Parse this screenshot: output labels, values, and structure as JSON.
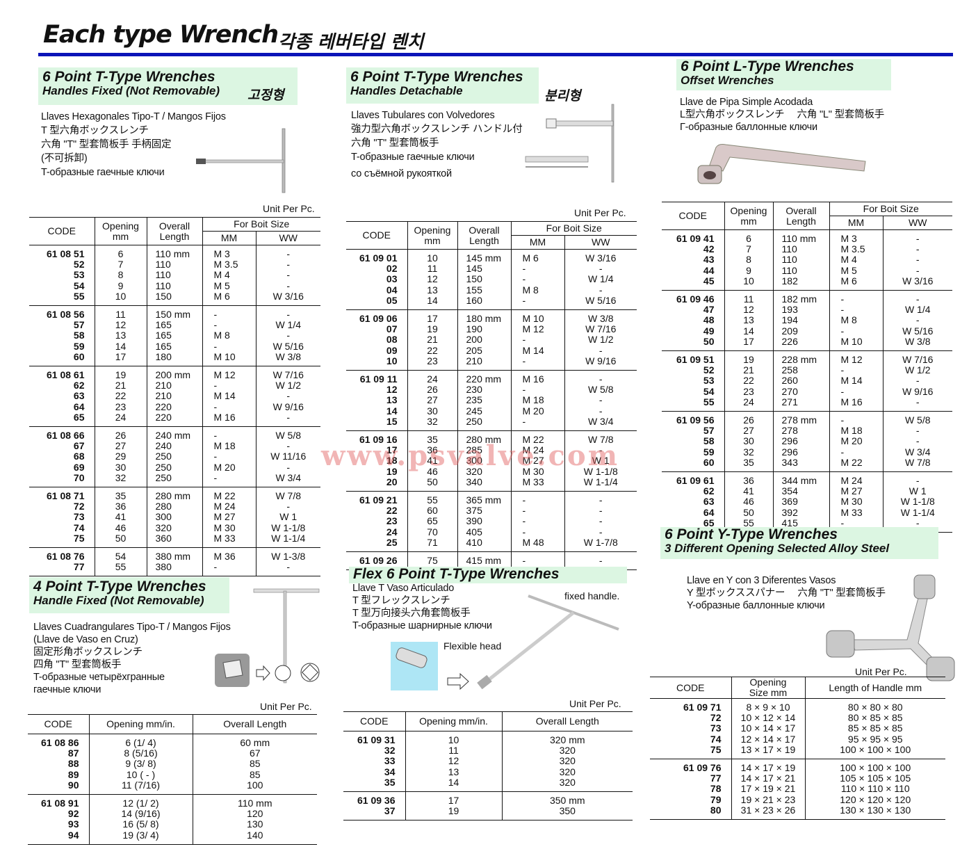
{
  "page": {
    "title": "Each type Wrench",
    "title_ko": "각종 레버타입 렌치",
    "watermark": "www.psvalve.com",
    "accent_color": "#0b14b8",
    "header_bg": "#dcf6e2"
  },
  "sections": {
    "s1": {
      "title": "6 Point T-Type Wrenches",
      "subtitle": "Handles Fixed (Not Removable)",
      "ko": "고정형",
      "desc": [
        "Llaves Hexagonales Tipo-T / Mangos Fijos",
        "T 型六角ボックスレンチ",
        "六角 \"T\" 型套筒板手 手柄固定",
        "(不可拆卸)",
        "T-образные гаечные ключи"
      ],
      "unit": "Unit Per Pc."
    },
    "s2": {
      "title": "6 Point T-Type Wrenches",
      "subtitle": "Handles Detachable",
      "ko": "분리형",
      "desc": [
        "Llaves Tubulares con Volvedores",
        "強力型六角ボックスレンチ ハンドル付",
        "六角 \"T\" 型套筒板手",
        "T-образные гаечные ключи",
        "со съёмной рукояткой"
      ],
      "unit": "Unit Per Pc."
    },
    "s3": {
      "title": "6 Point L-Type Wrenches",
      "subtitle": "Offset Wrenches",
      "desc": [
        "Llave de Pipa Simple Acodada",
        "L型六角ボックスレンチ　 六角 \"L\" 型套筒板手",
        "Г-образные баллонные ключи"
      ]
    },
    "s4": {
      "title": "4 Point T-Type Wrenches",
      "subtitle": "Handle Fixed (Not Removable)",
      "desc": [
        "Llaves Cuadrangulares Tipo-T / Mangos Fijos",
        "(Llave de Vaso en Cruz)",
        "固定形角ボックスレンチ",
        "四角 \"T\" 型套筒板手",
        "T-образные четырёхгранные",
        "гаечные ключи"
      ],
      "unit": "Unit Per Pc."
    },
    "s5": {
      "title": "Flex 6 Point T-Type Wrenches",
      "desc": [
        "Llave T Vaso Articulado",
        "T 型フレックスレンチ",
        "T 型万向接头六角套筒板手",
        "T-образные шарнирные ключи"
      ],
      "note_handle": "fixed handle.",
      "note_head": "Flexible head",
      "unit": "Unit Per Pc."
    },
    "s6": {
      "title": "6 Point Y-Type Wrenches",
      "subtitle": "3 Different Opening Selected Alloy Steel",
      "desc": [
        "Llave en Y con 3 Diferentes Vasos",
        "Y 型ボックススパナー　 六角 \"T\" 型套筒板手",
        "Y-образные баллонные ключи"
      ],
      "unit": "Unit Per Pc."
    }
  },
  "tables": {
    "t1": {
      "headers": [
        "CODE",
        "Opening mm",
        "Overall Length",
        "For Boit Size",
        "MM",
        "WW"
      ],
      "groups": [
        [
          [
            "61 08 51",
            "6",
            "110 mm",
            "M  3",
            "-"
          ],
          [
            "52",
            "7",
            "110",
            "M  3.5",
            "-"
          ],
          [
            "53",
            "8",
            "110",
            "M  4",
            "-"
          ],
          [
            "54",
            "9",
            "110",
            "M  5",
            "-"
          ],
          [
            "55",
            "10",
            "150",
            "M  6",
            "W 3/16"
          ]
        ],
        [
          [
            "61 08 56",
            "11",
            "150 mm",
            "-",
            "-"
          ],
          [
            "57",
            "12",
            "165",
            "-",
            "W 1/4"
          ],
          [
            "58",
            "13",
            "165",
            "M  8",
            "-"
          ],
          [
            "59",
            "14",
            "165",
            "-",
            "W 5/16"
          ],
          [
            "60",
            "17",
            "180",
            "M 10",
            "W 3/8"
          ]
        ],
        [
          [
            "61 08 61",
            "19",
            "200 mm",
            "M 12",
            "W 7/16"
          ],
          [
            "62",
            "21",
            "210",
            "-",
            "W 1/2"
          ],
          [
            "63",
            "22",
            "210",
            "M 14",
            "-"
          ],
          [
            "64",
            "23",
            "220",
            "-",
            "W 9/16"
          ],
          [
            "65",
            "24",
            "220",
            "M 16",
            "-"
          ]
        ],
        [
          [
            "61 08 66",
            "26",
            "240 mm",
            "-",
            "W 5/8"
          ],
          [
            "67",
            "27",
            "240",
            "M 18",
            "-"
          ],
          [
            "68",
            "29",
            "250",
            "-",
            "W 11/16"
          ],
          [
            "69",
            "30",
            "250",
            "M 20",
            "-"
          ],
          [
            "70",
            "32",
            "250",
            "-",
            "W 3/4"
          ]
        ],
        [
          [
            "61 08 71",
            "35",
            "280 mm",
            "M 22",
            "W 7/8"
          ],
          [
            "72",
            "36",
            "280",
            "M 24",
            "-"
          ],
          [
            "73",
            "41",
            "300",
            "M 27",
            "W 1"
          ],
          [
            "74",
            "46",
            "320",
            "M 30",
            "W 1-1/8"
          ],
          [
            "75",
            "50",
            "360",
            "M 33",
            "W 1-1/4"
          ]
        ],
        [
          [
            "61 08 76",
            "54",
            "380 mm",
            "M 36",
            "W 1-3/8"
          ],
          [
            "77",
            "55",
            "380",
            "-",
            "-"
          ]
        ]
      ]
    },
    "t2": {
      "headers": [
        "CODE",
        "Opening mm",
        "Overall Length",
        "For Boit Size",
        "MM",
        "WW"
      ],
      "groups": [
        [
          [
            "61 09 01",
            "10",
            "145 mm",
            "M  6",
            "W 3/16"
          ],
          [
            "02",
            "11",
            "145",
            "-",
            "-"
          ],
          [
            "03",
            "12",
            "150",
            "-",
            "W 1/4"
          ],
          [
            "04",
            "13",
            "155",
            "M  8",
            "-"
          ],
          [
            "05",
            "14",
            "160",
            "-",
            "W 5/16"
          ]
        ],
        [
          [
            "61 09 06",
            "17",
            "180 mm",
            "M 10",
            "W 3/8"
          ],
          [
            "07",
            "19",
            "190",
            "M 12",
            "W 7/16"
          ],
          [
            "08",
            "21",
            "200",
            "-",
            "W 1/2"
          ],
          [
            "09",
            "22",
            "205",
            "M 14",
            "-"
          ],
          [
            "10",
            "23",
            "210",
            "-",
            "W 9/16"
          ]
        ],
        [
          [
            "61 09 11",
            "24",
            "220 mm",
            "M 16",
            "-"
          ],
          [
            "12",
            "26",
            "230",
            "-",
            "W 5/8"
          ],
          [
            "13",
            "27",
            "235",
            "M 18",
            "-"
          ],
          [
            "14",
            "30",
            "245",
            "M 20",
            "-"
          ],
          [
            "15",
            "32",
            "250",
            "-",
            "W 3/4"
          ]
        ],
        [
          [
            "61 09 16",
            "35",
            "280 mm",
            "M 22",
            "W 7/8"
          ],
          [
            "17",
            "36",
            "285",
            "M 24",
            "-"
          ],
          [
            "18",
            "41",
            "300",
            "M 27",
            "W 1"
          ],
          [
            "19",
            "46",
            "320",
            "M 30",
            "W 1-1/8"
          ],
          [
            "20",
            "50",
            "340",
            "M 33",
            "W 1-1/4"
          ]
        ],
        [
          [
            "61 09 21",
            "55",
            "365 mm",
            "-",
            "-"
          ],
          [
            "22",
            "60",
            "375",
            "-",
            "-"
          ],
          [
            "23",
            "65",
            "390",
            "-",
            "-"
          ],
          [
            "24",
            "70",
            "405",
            "-",
            "-"
          ],
          [
            "25",
            "71",
            "410",
            "M 48",
            "W 1-7/8"
          ]
        ],
        [
          [
            "61 09 26",
            "75",
            "415 mm",
            "-",
            "-"
          ]
        ]
      ]
    },
    "t3": {
      "headers": [
        "CODE",
        "Opening mm",
        "Overall Length",
        "For Boit Size",
        "MM",
        "WW"
      ],
      "groups": [
        [
          [
            "61 09 41",
            "6",
            "110 mm",
            "M  3",
            "-"
          ],
          [
            "42",
            "7",
            "110",
            "M  3.5",
            "-"
          ],
          [
            "43",
            "8",
            "110",
            "M  4",
            "-"
          ],
          [
            "44",
            "9",
            "110",
            "M  5",
            "-"
          ],
          [
            "45",
            "10",
            "182",
            "M  6",
            "W 3/16"
          ]
        ],
        [
          [
            "61 09 46",
            "11",
            "182 mm",
            "-",
            "-"
          ],
          [
            "47",
            "12",
            "193",
            "-",
            "W 1/4"
          ],
          [
            "48",
            "13",
            "194",
            "M  8",
            "-"
          ],
          [
            "49",
            "14",
            "209",
            "-",
            "W 5/16"
          ],
          [
            "50",
            "17",
            "226",
            "M 10",
            "W 3/8"
          ]
        ],
        [
          [
            "61 09 51",
            "19",
            "228 mm",
            "M 12",
            "W 7/16"
          ],
          [
            "52",
            "21",
            "258",
            "-",
            "W 1/2"
          ],
          [
            "53",
            "22",
            "260",
            "M 14",
            "-"
          ],
          [
            "54",
            "23",
            "270",
            "-",
            "W 9/16"
          ],
          [
            "55",
            "24",
            "271",
            "M 16",
            "-"
          ]
        ],
        [
          [
            "61 09 56",
            "26",
            "278 mm",
            "-",
            "W 5/8"
          ],
          [
            "57",
            "27",
            "278",
            "M 18",
            "-"
          ],
          [
            "58",
            "30",
            "296",
            "M 20",
            "-"
          ],
          [
            "59",
            "32",
            "296",
            "-",
            "W 3/4"
          ],
          [
            "60",
            "35",
            "343",
            "M 22",
            "W 7/8"
          ]
        ],
        [
          [
            "61 09 61",
            "36",
            "344 mm",
            "M 24",
            "-"
          ],
          [
            "62",
            "41",
            "354",
            "M 27",
            "W 1"
          ],
          [
            "63",
            "46",
            "369",
            "M 30",
            "W 1-1/8"
          ],
          [
            "64",
            "50",
            "392",
            "M 33",
            "W 1-1/4"
          ],
          [
            "65",
            "55",
            "415",
            "-",
            "-"
          ]
        ]
      ]
    },
    "t4": {
      "headers": [
        "CODE",
        "Opening mm/in.",
        "Overall Length"
      ],
      "groups": [
        [
          [
            "61 08 86",
            "6  (1/ 4)",
            "60 mm"
          ],
          [
            "87",
            "8  (5/16)",
            "67"
          ],
          [
            "88",
            "9  (3/ 8)",
            "85"
          ],
          [
            "89",
            "10  ( - )",
            "85"
          ],
          [
            "90",
            "11  (7/16)",
            "100"
          ]
        ],
        [
          [
            "61 08 91",
            "12  (1/ 2)",
            "110 mm"
          ],
          [
            "92",
            "14  (9/16)",
            "120"
          ],
          [
            "93",
            "16  (5/ 8)",
            "130"
          ],
          [
            "94",
            "19  (3/ 4)",
            "140"
          ]
        ]
      ]
    },
    "t5": {
      "headers": [
        "CODE",
        "Opening mm/in.",
        "Overall Length"
      ],
      "groups": [
        [
          [
            "61 09 31",
            "10",
            "320 mm"
          ],
          [
            "32",
            "11",
            "320"
          ],
          [
            "33",
            "12",
            "320"
          ],
          [
            "34",
            "13",
            "320"
          ],
          [
            "35",
            "14",
            "320"
          ]
        ],
        [
          [
            "61 09 36",
            "17",
            "350 mm"
          ],
          [
            "37",
            "19",
            "350"
          ]
        ]
      ]
    },
    "t6": {
      "headers": [
        "CODE",
        "Opening Size mm",
        "Length of Handle mm"
      ],
      "groups": [
        [
          [
            "61 09 71",
            "8 ×   9 × 10",
            "80 ×   80 ×  80"
          ],
          [
            "72",
            "10 × 12 × 14",
            "80 ×   85 ×  85"
          ],
          [
            "73",
            "10 × 14 × 17",
            "85 ×   85 ×  85"
          ],
          [
            "74",
            "12 × 14 × 17",
            "95 ×   95 ×  95"
          ],
          [
            "75",
            "13 × 17 × 19",
            "100 × 100 × 100"
          ]
        ],
        [
          [
            "61 09 76",
            "14 × 17 × 19",
            "100 × 100 × 100"
          ],
          [
            "77",
            "14 × 17 × 21",
            "105 × 105 × 105"
          ],
          [
            "78",
            "17 × 19 × 21",
            "110 × 110 × 110"
          ],
          [
            "79",
            "19 × 21 × 23",
            "120 × 120 × 120"
          ],
          [
            "80",
            "31 × 23 × 26",
            "130 × 130 × 130"
          ]
        ]
      ]
    }
  }
}
